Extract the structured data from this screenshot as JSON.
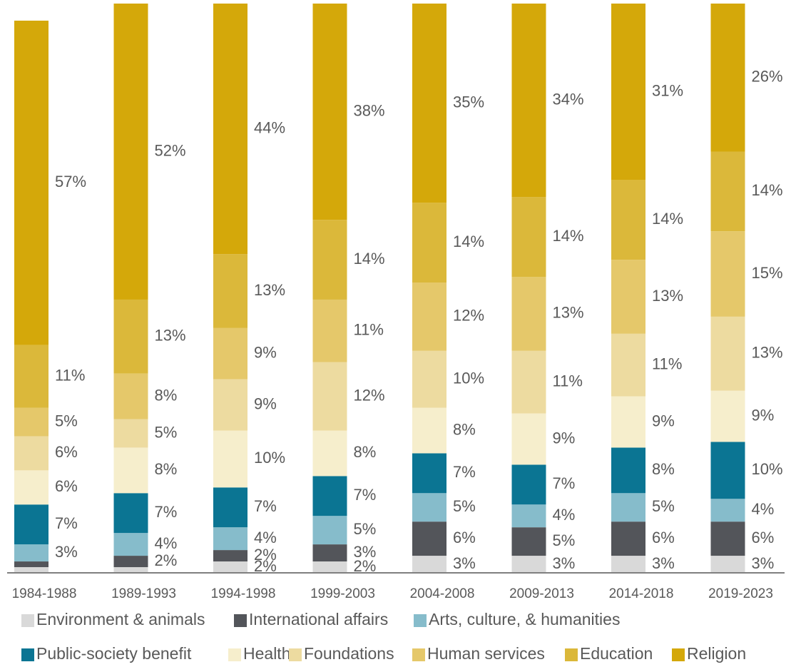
{
  "chart_data": {
    "type": "bar",
    "stacked": true,
    "categories": [
      "1984-1988",
      "1989-1993",
      "1994-1998",
      "1999-2003",
      "2004-2008",
      "2009-2013",
      "2014-2018",
      "2019-2023"
    ],
    "ylim": [
      0,
      100
    ],
    "series": [
      {
        "name": "Environment & animals",
        "color": "#d9d9d9",
        "values": [
          1,
          1,
          2,
          2,
          3,
          3,
          3,
          3
        ],
        "value_labels": [
          null,
          null,
          "2%",
          "2%",
          "3%",
          "3%",
          "3%",
          "3%"
        ]
      },
      {
        "name": "International affairs",
        "color": "#53555a",
        "values": [
          1,
          2,
          2,
          3,
          6,
          5,
          6,
          6
        ],
        "value_labels": [
          null,
          "2%",
          "2%",
          "3%",
          "6%",
          "5%",
          "6%",
          "6%"
        ]
      },
      {
        "name": "Arts, culture, & humanities",
        "color": "#86bccb",
        "values": [
          3,
          4,
          4,
          5,
          5,
          4,
          5,
          4
        ],
        "value_labels": [
          "3%",
          "4%",
          "4%",
          "5%",
          "5%",
          "4%",
          "5%",
          "4%"
        ]
      },
      {
        "name": "Public-society benefit",
        "color": "#0b7593",
        "values": [
          7,
          7,
          7,
          7,
          7,
          7,
          8,
          10
        ],
        "value_labels": [
          "7%",
          "7%",
          "7%",
          "7%",
          "7%",
          "7%",
          "8%",
          "10%"
        ]
      },
      {
        "name": "Health",
        "color": "#f6eecc",
        "values": [
          6,
          8,
          10,
          8,
          8,
          9,
          9,
          9
        ],
        "value_labels": [
          "6%",
          "8%",
          "10%",
          "8%",
          "8%",
          "9%",
          "9%",
          "9%"
        ]
      },
      {
        "name": "Foundations",
        "color": "#eddba0",
        "values": [
          6,
          5,
          9,
          12,
          10,
          11,
          11,
          13
        ],
        "value_labels": [
          "6%",
          "5%",
          "9%",
          "12%",
          "10%",
          "11%",
          "11%",
          "13%"
        ]
      },
      {
        "name": "Human services",
        "color": "#e5c86a",
        "values": [
          5,
          8,
          9,
          11,
          12,
          13,
          13,
          15
        ],
        "value_labels": [
          "5%",
          "8%",
          "9%",
          "11%",
          "12%",
          "13%",
          "13%",
          "15%"
        ]
      },
      {
        "name": "Education",
        "color": "#dbb83a",
        "values": [
          11,
          13,
          13,
          14,
          14,
          14,
          14,
          14
        ],
        "value_labels": [
          "11%",
          "13%",
          "13%",
          "14%",
          "14%",
          "14%",
          "14%",
          "14%"
        ]
      },
      {
        "name": "Religion",
        "color": "#d4a80a",
        "values": [
          57,
          52,
          44,
          38,
          35,
          34,
          31,
          26
        ],
        "value_labels": [
          "57%",
          "52%",
          "44%",
          "38%",
          "35%",
          "34%",
          "31%",
          "26%"
        ]
      }
    ]
  }
}
